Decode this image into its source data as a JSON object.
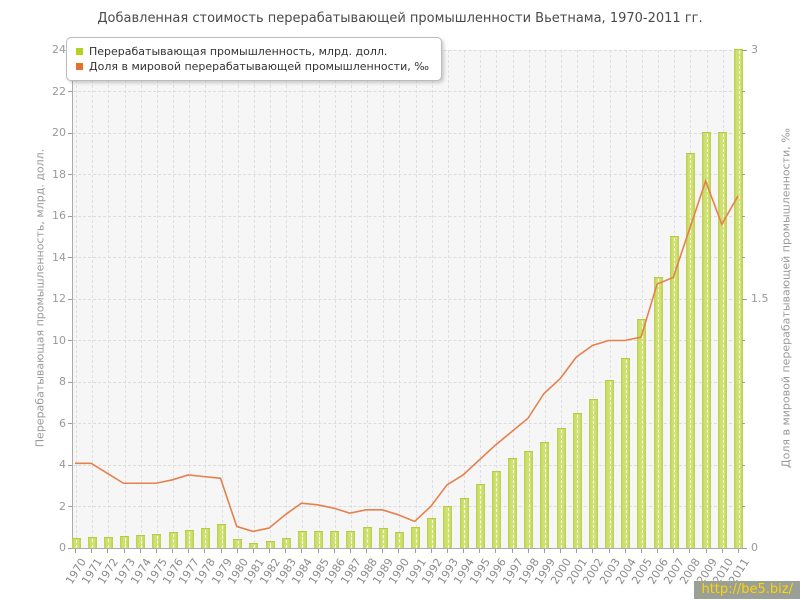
{
  "page": {
    "watermark": "http://be5.biz/"
  },
  "chart_data": {
    "type": "bar",
    "title": "Добавленная стоимость перерабатывающей промышленности Вьетнама, 1970-2011 гг.",
    "categories": [
      1970,
      1971,
      1972,
      1973,
      1974,
      1975,
      1976,
      1977,
      1978,
      1979,
      1980,
      1981,
      1982,
      1983,
      1984,
      1985,
      1986,
      1987,
      1988,
      1989,
      1990,
      1991,
      1992,
      1993,
      1994,
      1995,
      1996,
      1997,
      1998,
      1999,
      2000,
      2001,
      2002,
      2003,
      2004,
      2005,
      2006,
      2007,
      2008,
      2009,
      2010,
      2011
    ],
    "series": [
      {
        "name": "Перерабатывающая промышленность, млрд. долл.",
        "type": "bar",
        "axis": "left",
        "color": "#c6d95c",
        "values": [
          0.45,
          0.47,
          0.5,
          0.55,
          0.6,
          0.65,
          0.7,
          0.8,
          0.9,
          1.1,
          0.4,
          0.2,
          0.3,
          0.45,
          0.75,
          0.75,
          0.78,
          0.77,
          0.98,
          0.9,
          0.7,
          0.95,
          1.4,
          2.0,
          2.35,
          3.05,
          3.65,
          4.3,
          4.65,
          5.05,
          5.75,
          6.45,
          7.15,
          8.05,
          9.1,
          11.0,
          13.0,
          15.0,
          19.0,
          20.0,
          20.0,
          24.0
        ]
      },
      {
        "name": "Доля в мировой перерабатывающей промышленности, ‰",
        "type": "line",
        "axis": "right",
        "color": "#e5814e",
        "values": [
          0.51,
          0.51,
          0.45,
          0.39,
          0.39,
          0.39,
          0.41,
          0.44,
          0.43,
          0.42,
          0.13,
          0.1,
          0.12,
          0.2,
          0.27,
          0.26,
          0.24,
          0.21,
          0.23,
          0.23,
          0.2,
          0.16,
          0.25,
          0.38,
          0.44,
          0.53,
          0.62,
          0.7,
          0.78,
          0.93,
          1.02,
          1.15,
          1.22,
          1.25,
          1.25,
          1.27,
          1.59,
          1.63,
          1.92,
          2.21,
          1.95,
          2.12
        ]
      }
    ],
    "left_axis": {
      "label": "Перерабатывающая промышленность, млрд. долл.",
      "min": 0,
      "max": 24,
      "ticks": [
        0,
        2,
        4,
        6,
        8,
        10,
        12,
        14,
        16,
        18,
        20,
        22,
        24
      ]
    },
    "right_axis": {
      "label": "Доля в мировой перерабатывающей промышленности, ‰",
      "min": 0,
      "max": 3,
      "ticks": [
        0,
        1.5,
        3
      ],
      "minor_step": 0.25
    },
    "grid": true,
    "legend_position": "top-left"
  },
  "colors": {
    "bar_fill": "#c6d95c",
    "bar_edge": "#b7cb42",
    "line": "#e5814e",
    "legend_swatch_bar": "#b3d122",
    "legend_swatch_line": "#e4702e",
    "plot_bg": "#f6f6f6",
    "grid": "#dcdcdc",
    "tick_text": "#999999",
    "title_text": "#4a4a4a",
    "watermark_bg": "#9aa096",
    "watermark_text": "#ffd400"
  }
}
